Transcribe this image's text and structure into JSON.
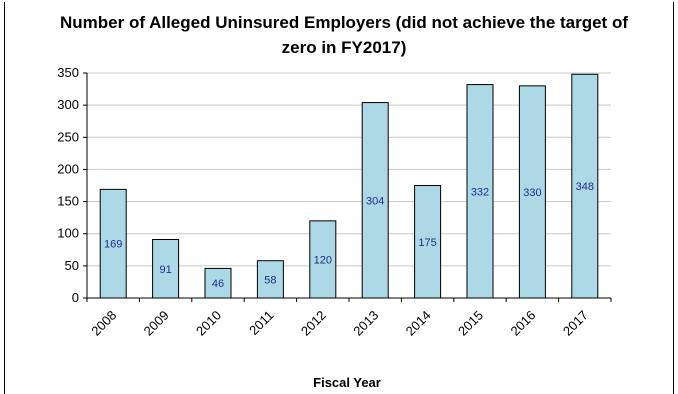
{
  "chart_data": {
    "type": "bar",
    "title_lines": [
      "Number of Alleged Uninsured Employers (did not achieve the target of",
      "zero in FY2017)"
    ],
    "xlabel": "Fiscal Year",
    "ylabel": "",
    "categories": [
      "2008",
      "2009",
      "2010",
      "2011",
      "2012",
      "2013",
      "2014",
      "2015",
      "2016",
      "2017"
    ],
    "values": [
      169,
      91,
      46,
      58,
      120,
      304,
      175,
      332,
      330,
      348
    ],
    "ylim": [
      0,
      350
    ],
    "yticks": [
      0,
      50,
      100,
      150,
      200,
      250,
      300,
      350
    ],
    "grid": true,
    "legend": "none",
    "colors": {
      "bar_fill": "#add8e6",
      "bar_stroke": "#000000",
      "grid": "#c8c8c8",
      "data_label": "#1f2c8f"
    }
  }
}
